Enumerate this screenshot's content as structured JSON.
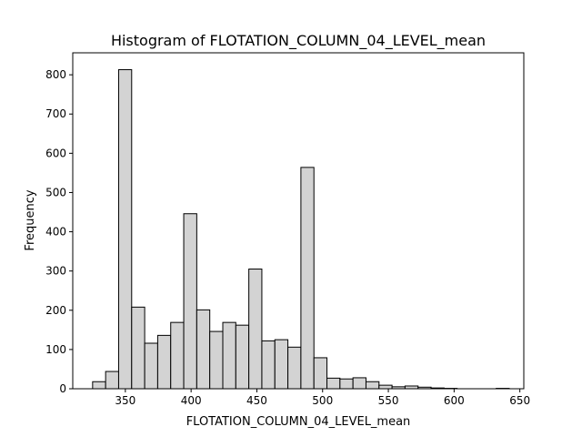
{
  "chart_data": {
    "type": "bar",
    "title": "Histogram of FLOTATION_COLUMN_04_LEVEL_mean",
    "xlabel": "FLOTATION_COLUMN_04_LEVEL_mean",
    "ylabel": "Frequency",
    "xlim": [
      310,
      653
    ],
    "ylim": [
      0,
      856
    ],
    "xticks": [
      350,
      400,
      450,
      500,
      550,
      600,
      650
    ],
    "yticks": [
      0,
      100,
      200,
      300,
      400,
      500,
      600,
      700,
      800
    ],
    "grid": false,
    "bar_color": "#d3d3d3",
    "edge_color": "#000000",
    "bin_width": 9.9,
    "bin_step": 9.9,
    "bin_starts": [
      325.1,
      335.0,
      344.9,
      354.8,
      364.7,
      374.6,
      384.5,
      394.4,
      404.3,
      414.2,
      424.1,
      434.0,
      443.9,
      453.8,
      463.7,
      473.6,
      483.5,
      493.4,
      503.3,
      513.2,
      523.1,
      533.0,
      542.9,
      552.8,
      562.7,
      572.6,
      582.5,
      592.4,
      602.3,
      612.2,
      622.1,
      632.0
    ],
    "values": [
      18,
      44,
      813,
      208,
      116,
      136,
      169,
      446,
      201,
      146,
      169,
      162,
      305,
      122,
      125,
      106,
      564,
      79,
      27,
      25,
      28,
      18,
      9,
      5,
      7,
      4,
      2,
      1,
      0,
      0,
      0,
      1
    ]
  }
}
